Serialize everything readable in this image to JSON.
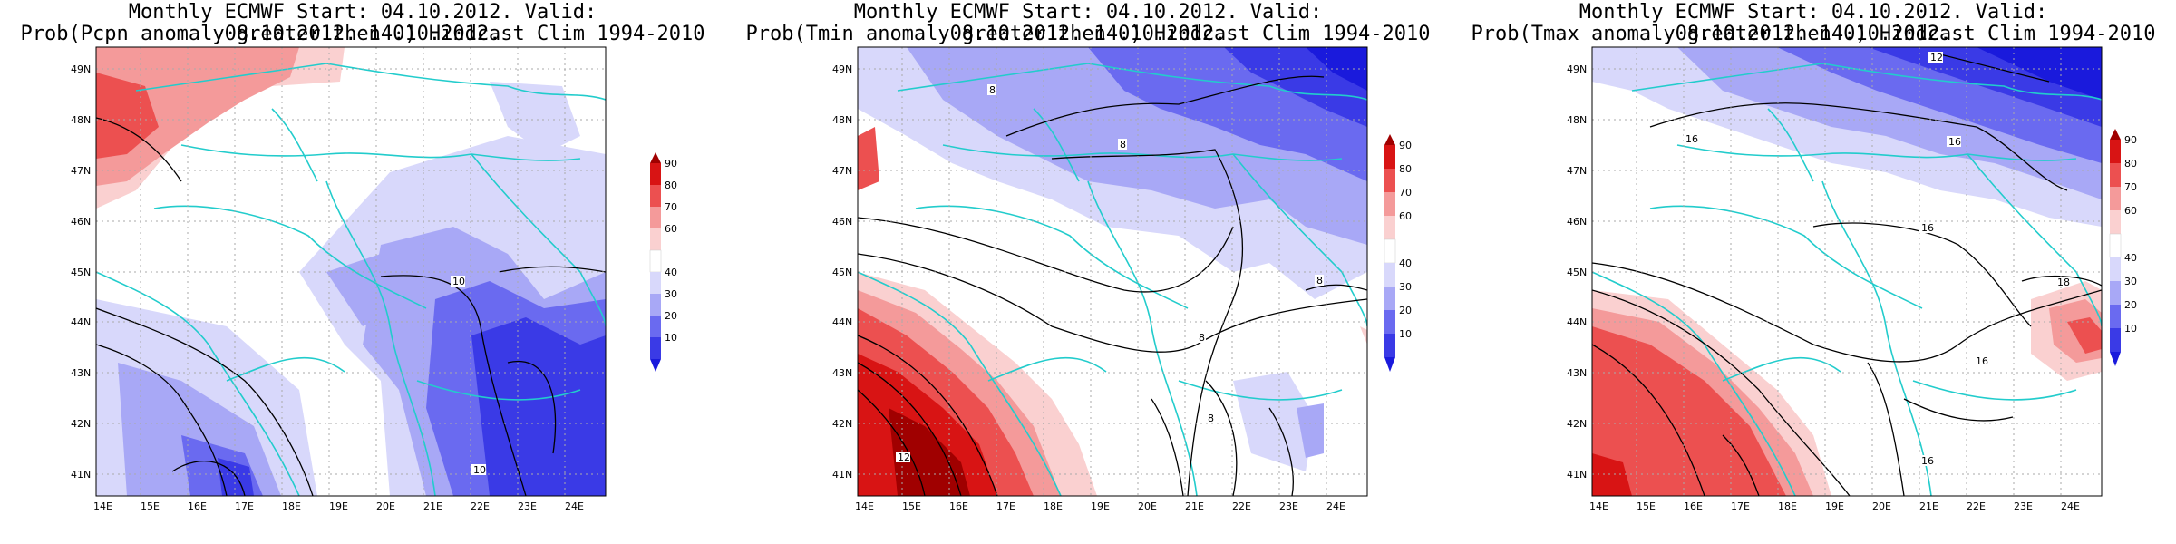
{
  "maps": [
    {
      "title1": "Monthly ECMWF Start: 04.10.2012. Valid: 08.10.2012.-14.10.2012.",
      "title2": "Prob(Pcpn anomaly greater then 0) Hindcast Clim 1994-2010",
      "variable": "Pcpn",
      "contour_labels": [
        "10",
        "10"
      ]
    },
    {
      "title1": "Monthly ECMWF Start: 04.10.2012. Valid: 08.10.2012.-14.10.2012.",
      "title2": "Prob(Tmin anomaly greater then 0) Hindcast Clim 1994-2010",
      "variable": "Tmin",
      "contour_labels": [
        "8",
        "8",
        "8",
        "8",
        "8",
        "12"
      ]
    },
    {
      "title1": "Monthly ECMWF Start: 04.10.2012. Valid: 08.10.2012.-14.10.2012.",
      "title2": "Prob(Tmax anomaly greater then 0) Hindcast Clim 1994-2010",
      "variable": "Tmax",
      "contour_labels": [
        "12",
        "16",
        "16",
        "16",
        "18",
        "16",
        "16"
      ]
    }
  ],
  "x_ticks": [
    "14E",
    "15E",
    "16E",
    "17E",
    "18E",
    "19E",
    "20E",
    "21E",
    "22E",
    "23E",
    "24E"
  ],
  "y_ticks": [
    "41N",
    "42N",
    "43N",
    "44N",
    "45N",
    "46N",
    "47N",
    "48N",
    "49N"
  ],
  "colorbar": {
    "labels": [
      "10",
      "20",
      "30",
      "40",
      "60",
      "70",
      "80",
      "90"
    ],
    "colors": [
      "#1a1adc",
      "#3a3ae6",
      "#6a6af0",
      "#a8a8f6",
      "#d8d8fb",
      "#ffffff",
      "#fad0d0",
      "#f49a9a",
      "#ec5050",
      "#d81414",
      "#a00000"
    ]
  },
  "colors": {
    "border": "#22cccc",
    "contour": "#000000",
    "grid": "#aaaaaa"
  }
}
